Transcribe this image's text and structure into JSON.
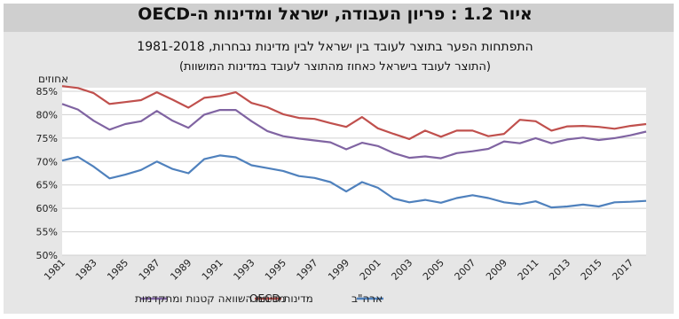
{
  "figure": {
    "title": "איור 1.2 : פריון העבודה, ישראל ומדינות ה-OECD",
    "subtitle": "התפתחות הפער בתוצר לעובד בין ישראל לבין מדינות נבחרות, 1981-2018",
    "subtitle2": "(התוצר לעובד בישראל כאחוז מהתוצר לעובד במדינות המושוות)"
  },
  "chart_data": {
    "type": "line",
    "ylabel": "אחוזים",
    "ylim": [
      50,
      85
    ],
    "yticks": [
      "50%",
      "55%",
      "60%",
      "65%",
      "70%",
      "75%",
      "80%",
      "85%"
    ],
    "ytick_values": [
      50,
      55,
      60,
      65,
      70,
      75,
      80,
      85
    ],
    "xticks": [
      "1981",
      "1983",
      "1985",
      "1987",
      "1989",
      "1991",
      "1993",
      "1995",
      "1997",
      "1999",
      "2001",
      "2003",
      "2005",
      "2007",
      "2009",
      "2011",
      "2013",
      "2015",
      "2017"
    ],
    "x": [
      1981,
      1982,
      1983,
      1984,
      1985,
      1986,
      1987,
      1988,
      1989,
      1990,
      1991,
      1992,
      1993,
      1994,
      1995,
      1996,
      1997,
      1998,
      1999,
      2000,
      2001,
      2002,
      2003,
      2004,
      2005,
      2006,
      2007,
      2008,
      2009,
      2010,
      2011,
      2012,
      2013,
      2014,
      2015,
      2016,
      2017,
      2018
    ],
    "grid": true,
    "legend_position": "bottom",
    "series": [
      {
        "name": "ארה\"ב",
        "color": "#4f81bd",
        "values": [
          70.2,
          71.0,
          68.9,
          66.4,
          67.2,
          68.2,
          70.0,
          68.4,
          67.5,
          70.5,
          71.3,
          70.9,
          69.2,
          68.6,
          68.0,
          66.9,
          66.5,
          65.6,
          63.6,
          65.6,
          64.4,
          62.1,
          61.3,
          61.8,
          61.2,
          62.2,
          62.8,
          62.2,
          61.3,
          60.9,
          61.5,
          60.2,
          60.4,
          60.8,
          60.4,
          61.3,
          61.4,
          61.6
        ]
      },
      {
        "name": "מדינות OECD",
        "color": "#c0504d",
        "values": [
          86.1,
          85.7,
          84.6,
          82.3,
          82.7,
          83.1,
          84.8,
          83.2,
          81.5,
          83.6,
          84.0,
          84.8,
          82.5,
          81.6,
          80.1,
          79.3,
          79.1,
          78.2,
          77.4,
          79.5,
          77.1,
          75.9,
          74.8,
          76.6,
          75.3,
          76.6,
          76.6,
          75.4,
          75.9,
          78.9,
          78.6,
          76.6,
          77.5,
          77.6,
          77.4,
          77.0,
          77.6,
          78.0
        ]
      },
      {
        "name": "מדינות השוואה קטנות ומתקדמות",
        "color": "#8064a2",
        "values": [
          82.3,
          81.1,
          78.7,
          76.8,
          78.0,
          78.6,
          80.8,
          78.7,
          77.2,
          80.0,
          81.0,
          81.0,
          78.6,
          76.5,
          75.4,
          74.9,
          74.5,
          74.1,
          72.6,
          74.0,
          73.3,
          71.8,
          70.8,
          71.1,
          70.7,
          71.8,
          72.2,
          72.7,
          74.3,
          73.9,
          75.0,
          73.9,
          74.7,
          75.1,
          74.6,
          75.0,
          75.6,
          76.4
        ]
      }
    ]
  }
}
